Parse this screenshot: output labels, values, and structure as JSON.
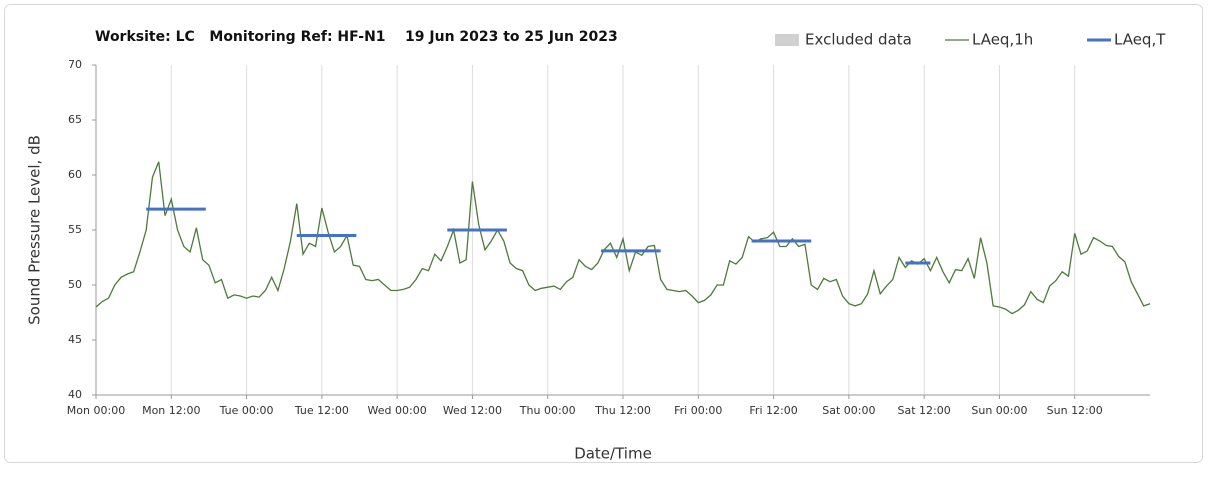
{
  "chart_data": {
    "type": "line",
    "title": "Worksite: LC   Monitoring Ref: HF-N1    19 Jun 2023 to 25 Jun 2023",
    "x_label": "Date/Time",
    "y_label": "Sound Pressure Level, dB",
    "xlim": [
      0,
      168
    ],
    "xticks": [
      {
        "value": 0,
        "label": "Mon 00:00"
      },
      {
        "value": 12,
        "label": "Mon 12:00"
      },
      {
        "value": 24,
        "label": "Tue 00:00"
      },
      {
        "value": 36,
        "label": "Tue 12:00"
      },
      {
        "value": 48,
        "label": "Wed 00:00"
      },
      {
        "value": 60,
        "label": "Wed 12:00"
      },
      {
        "value": 72,
        "label": "Thu 00:00"
      },
      {
        "value": 84,
        "label": "Thu 12:00"
      },
      {
        "value": 96,
        "label": "Fri 00:00"
      },
      {
        "value": 108,
        "label": "Fri 12:00"
      },
      {
        "value": 120,
        "label": "Sat 00:00"
      },
      {
        "value": 132,
        "label": "Sat 12:00"
      },
      {
        "value": 144,
        "label": "Sun 00:00"
      },
      {
        "value": 156,
        "label": "Sun 12:00"
      }
    ],
    "ylim": [
      40,
      70
    ],
    "yticks": [
      40,
      45,
      50,
      55,
      60,
      65,
      70
    ],
    "grid": "x",
    "legend": "top-right",
    "legend_items": [
      {
        "name": "Excluded data",
        "color": "#d0d0d0"
      }
    ],
    "x": [
      0,
      1,
      2,
      3,
      4,
      5,
      6,
      7,
      8,
      9,
      10,
      11,
      12,
      13,
      14,
      15,
      16,
      17,
      18,
      19,
      20,
      21,
      22,
      23,
      24,
      25,
      26,
      27,
      28,
      29,
      30,
      31,
      32,
      33,
      34,
      35,
      36,
      37,
      38,
      39,
      40,
      41,
      42,
      43,
      44,
      45,
      46,
      47,
      48,
      49,
      50,
      51,
      52,
      53,
      54,
      55,
      56,
      57,
      58,
      59,
      60,
      61,
      62,
      63,
      64,
      65,
      66,
      67,
      68,
      69,
      70,
      71,
      72,
      73,
      74,
      75,
      76,
      77,
      78,
      79,
      80,
      81,
      82,
      83,
      84,
      85,
      86,
      87,
      88,
      89,
      90,
      91,
      92,
      93,
      94,
      95,
      96,
      97,
      98,
      99,
      100,
      101,
      102,
      103,
      104,
      105,
      106,
      107,
      108,
      109,
      110,
      111,
      112,
      113,
      114,
      115,
      116,
      117,
      118,
      119,
      120,
      121,
      122,
      123,
      124,
      125,
      126,
      127,
      128,
      129,
      130,
      131,
      132,
      133,
      134,
      135,
      136,
      137,
      138,
      139,
      140,
      141,
      142,
      143,
      144,
      145,
      146,
      147,
      148,
      149,
      150,
      151,
      152,
      153,
      154,
      155,
      156,
      157,
      158,
      159,
      160,
      161,
      162,
      163,
      164,
      165,
      166,
      167,
      168
    ],
    "series": [
      {
        "name": "LAeq,1h",
        "color": "#4e7a3a",
        "values": [
          48.0,
          48.5,
          48.8,
          50.0,
          50.7,
          51.0,
          51.2,
          53.0,
          55.0,
          59.8,
          61.2,
          56.3,
          57.8,
          55.0,
          53.5,
          53.0,
          55.2,
          52.3,
          51.8,
          50.2,
          50.5,
          48.8,
          49.1,
          49.0,
          48.8,
          49.0,
          48.9,
          49.5,
          50.7,
          49.5,
          51.5,
          54.0,
          57.4,
          52.8,
          53.8,
          53.5,
          57.0,
          54.8,
          53.0,
          53.5,
          54.5,
          51.8,
          51.7,
          50.5,
          50.4,
          50.5,
          50.0,
          49.5,
          49.5,
          49.6,
          49.8,
          50.5,
          51.5,
          51.3,
          52.8,
          52.2,
          53.5,
          55.0,
          52.0,
          52.3,
          59.4,
          55.5,
          53.2,
          54.0,
          55.0,
          54.0,
          52.0,
          51.5,
          51.3,
          50.0,
          49.5,
          49.7,
          49.8,
          49.9,
          49.6,
          50.3,
          50.7,
          52.3,
          51.7,
          51.4,
          52.0,
          53.2,
          53.8,
          52.5,
          54.2,
          51.3,
          53.0,
          52.7,
          53.5,
          53.6,
          50.5,
          49.6,
          49.5,
          49.4,
          49.5,
          49.0,
          48.4,
          48.6,
          49.1,
          50.0,
          50.0,
          52.2,
          51.9,
          52.5,
          54.4,
          53.9,
          54.2,
          54.3,
          54.8,
          53.5,
          53.5,
          54.2,
          53.5,
          53.7,
          50.0,
          49.6,
          50.6,
          50.3,
          50.5,
          49.0,
          48.3,
          48.1,
          48.3,
          49.2,
          51.3,
          49.2,
          49.9,
          50.5,
          52.5,
          51.6,
          52.2,
          51.9,
          52.4,
          51.3,
          52.5,
          51.2,
          50.2,
          51.4,
          51.3,
          52.4,
          50.6,
          54.3,
          52.0,
          48.1,
          48.0,
          47.8,
          47.4,
          47.7,
          48.2,
          49.4,
          48.7,
          48.4,
          49.9,
          50.4,
          51.2,
          50.8,
          54.7,
          52.8,
          53.1,
          54.3,
          54.0,
          53.6,
          53.5,
          52.6,
          52.1,
          50.3,
          49.2,
          48.1,
          48.3
        ]
      },
      {
        "name": "LAeq,T",
        "color": "#4472c4",
        "segments": [
          {
            "start": 8,
            "end": 17.5,
            "value": 56.9
          },
          {
            "start": 32,
            "end": 41.5,
            "value": 54.5
          },
          {
            "start": 56,
            "end": 65.5,
            "value": 55.0
          },
          {
            "start": 80.5,
            "end": 90,
            "value": 53.1
          },
          {
            "start": 104.5,
            "end": 114,
            "value": 54.0
          },
          {
            "start": 129,
            "end": 133,
            "value": 52.0
          }
        ]
      }
    ]
  }
}
